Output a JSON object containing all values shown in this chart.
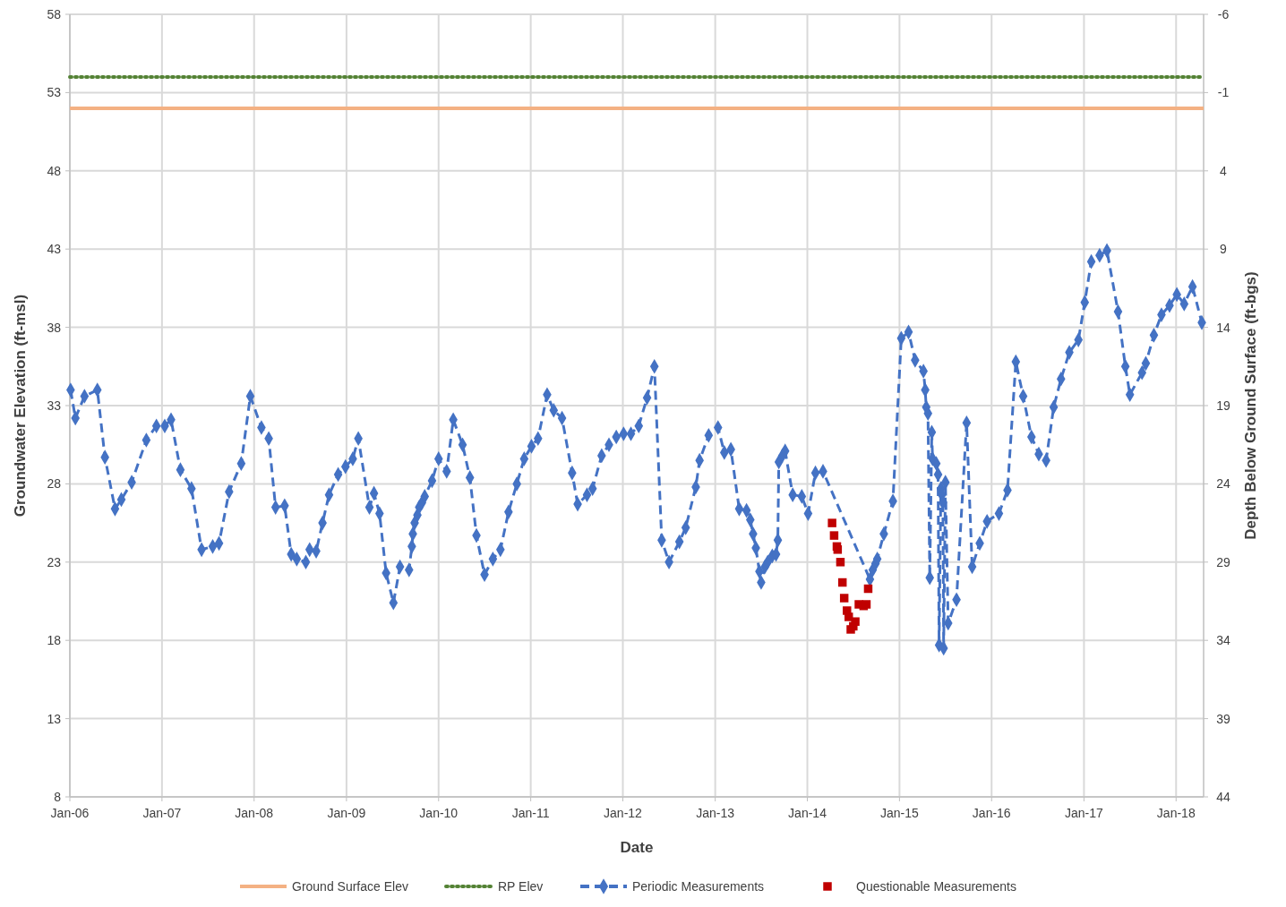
{
  "chart_data": {
    "type": "line",
    "xlabel": "Date",
    "ylabel": "Groundwater Elevation (ft-msl)",
    "y2label": "Depth Below Ground Surface (ft-bgs)",
    "xlim": [
      "2006-01-01",
      "2018-04-20"
    ],
    "xticks": [
      {
        "value": "2006-01-01",
        "label": "Jan-06"
      },
      {
        "value": "2007-01-01",
        "label": "Jan-07"
      },
      {
        "value": "2008-01-01",
        "label": "Jan-08"
      },
      {
        "value": "2009-01-01",
        "label": "Jan-09"
      },
      {
        "value": "2010-01-01",
        "label": "Jan-10"
      },
      {
        "value": "2011-01-01",
        "label": "Jan-11"
      },
      {
        "value": "2012-01-01",
        "label": "Jan-12"
      },
      {
        "value": "2013-01-01",
        "label": "Jan-13"
      },
      {
        "value": "2014-01-01",
        "label": "Jan-14"
      },
      {
        "value": "2015-01-01",
        "label": "Jan-15"
      },
      {
        "value": "2016-01-01",
        "label": "Jan-16"
      },
      {
        "value": "2017-01-01",
        "label": "Jan-17"
      },
      {
        "value": "2018-01-01",
        "label": "Jan-18"
      }
    ],
    "ylim": [
      8,
      58
    ],
    "yticks": [
      8,
      13,
      18,
      23,
      28,
      33,
      38,
      43,
      48,
      53,
      58
    ],
    "y2lim": [
      44,
      -6
    ],
    "y2ticks": [
      44,
      39,
      34,
      29,
      24,
      19,
      14,
      9,
      4,
      -1,
      -6
    ],
    "grid": true,
    "legend": "bottom",
    "series": [
      {
        "name": "Ground Surface Elev",
        "color": "#f4b183",
        "line_style": "solid",
        "marker": "none",
        "x": [
          "2006-01-01",
          "2018-04-20"
        ],
        "values": [
          52,
          52
        ]
      },
      {
        "name": "RP Elev",
        "color": "#548235",
        "line_style": "dotted",
        "marker": "none",
        "x": [
          "2006-01-01",
          "2018-04-20"
        ],
        "values": [
          54,
          54
        ]
      },
      {
        "name": "Periodic Measurements",
        "color": "#4472c4",
        "line_style": "dashed",
        "marker": "diamond",
        "x": [
          "2006-01-04",
          "2006-01-23",
          "2006-02-28",
          "2006-04-20",
          "2006-05-20",
          "2006-06-29",
          "2006-07-24",
          "2006-09-03",
          "2006-10-31",
          "2006-12-10",
          "2007-01-12",
          "2007-02-06",
          "2007-03-15",
          "2007-04-28",
          "2007-06-07",
          "2007-07-21",
          "2007-08-15",
          "2007-09-24",
          "2007-11-11",
          "2007-12-17",
          "2008-01-30",
          "2008-02-28",
          "2008-03-26",
          "2008-05-01",
          "2008-05-27",
          "2008-06-18",
          "2008-07-24",
          "2008-08-08",
          "2008-09-03",
          "2008-09-28",
          "2008-10-24",
          "2008-11-29",
          "2008-12-28",
          "2009-01-26",
          "2009-02-17",
          "2009-04-02",
          "2009-04-20",
          "2009-05-12",
          "2009-06-07",
          "2009-07-06",
          "2009-08-01",
          "2009-09-06",
          "2009-09-17",
          "2009-09-21",
          "2009-09-28",
          "2009-10-09",
          "2009-10-16",
          "2009-10-27",
          "2009-11-07",
          "2009-12-06",
          "2010-01-01",
          "2010-02-02",
          "2010-02-28",
          "2010-04-06",
          "2010-05-05",
          "2010-05-31",
          "2010-07-02",
          "2010-08-04",
          "2010-09-03",
          "2010-10-05",
          "2010-11-07",
          "2010-12-06",
          "2011-01-04",
          "2011-01-30",
          "2011-03-07",
          "2011-04-02",
          "2011-05-05",
          "2011-06-14",
          "2011-07-06",
          "2011-08-12",
          "2011-09-03",
          "2011-10-09",
          "2011-11-07",
          "2011-12-06",
          "2012-01-04",
          "2012-02-02",
          "2012-03-04",
          "2012-04-06",
          "2012-05-05",
          "2012-06-03",
          "2012-07-02",
          "2012-08-12",
          "2012-09-06",
          "2012-10-16",
          "2012-10-31",
          "2012-12-06",
          "2013-01-12",
          "2013-02-06",
          "2013-03-04",
          "2013-04-06",
          "2013-05-05",
          "2013-05-20",
          "2013-05-31",
          "2013-06-11",
          "2013-06-25",
          "2013-07-02",
          "2013-07-17",
          "2013-07-28",
          "2013-08-15",
          "2013-08-30",
          "2013-09-06",
          "2013-09-10",
          "2013-09-24",
          "2013-10-05",
          "2013-11-04",
          "2013-12-10",
          "2014-01-04",
          "2014-02-02",
          "2014-03-04",
          "2014-09-06",
          "2014-09-17",
          "2014-09-28",
          "2014-10-05",
          "2014-10-31",
          "2014-12-06",
          "2015-01-08",
          "2015-02-06",
          "2015-03-04",
          "2015-04-06",
          "2015-04-13",
          "2015-04-17",
          "2015-04-24",
          "2015-05-01",
          "2015-05-09",
          "2015-05-12",
          "2015-05-27",
          "2015-06-03",
          "2015-06-07",
          "2015-06-14",
          "2015-06-18",
          "2015-06-22",
          "2015-06-25",
          "2015-07-02",
          "2015-07-13",
          "2015-08-15",
          "2015-09-24",
          "2015-10-16",
          "2015-11-15",
          "2015-12-14",
          "2016-01-30",
          "2016-03-04",
          "2016-04-06",
          "2016-05-05",
          "2016-06-07",
          "2016-07-06",
          "2016-08-04",
          "2016-09-03",
          "2016-10-02",
          "2016-11-04",
          "2016-12-10",
          "2017-01-04",
          "2017-01-30",
          "2017-03-04",
          "2017-04-02",
          "2017-05-16",
          "2017-06-14",
          "2017-07-02",
          "2017-08-19",
          "2017-09-03",
          "2017-10-05",
          "2017-11-04",
          "2017-12-06",
          "2018-01-04",
          "2018-02-02",
          "2018-03-07",
          "2018-04-13"
        ],
        "values": [
          34.0,
          32.2,
          33.6,
          34.0,
          29.7,
          26.4,
          27.0,
          28.1,
          30.8,
          31.7,
          31.7,
          32.1,
          28.9,
          27.7,
          23.8,
          24.0,
          24.2,
          27.5,
          29.3,
          33.6,
          31.6,
          30.9,
          26.5,
          26.6,
          23.5,
          23.2,
          23.0,
          23.8,
          23.7,
          25.5,
          27.3,
          28.6,
          29.1,
          29.6,
          30.9,
          26.5,
          27.4,
          26.1,
          22.3,
          20.4,
          22.7,
          22.5,
          24.0,
          24.8,
          25.5,
          26.0,
          26.5,
          26.8,
          27.2,
          28.2,
          29.6,
          28.8,
          32.1,
          30.5,
          28.4,
          24.7,
          22.2,
          23.2,
          23.8,
          26.2,
          28.0,
          29.6,
          30.4,
          30.9,
          33.7,
          32.7,
          32.2,
          28.7,
          26.7,
          27.3,
          27.7,
          29.8,
          30.5,
          31.0,
          31.2,
          31.2,
          31.7,
          33.5,
          35.5,
          24.4,
          23.0,
          24.3,
          25.2,
          27.8,
          29.5,
          31.1,
          31.6,
          30.0,
          30.2,
          26.4,
          26.3,
          25.7,
          24.8,
          23.9,
          22.4,
          21.7,
          22.7,
          23.0,
          23.4,
          23.5,
          24.4,
          29.4,
          29.8,
          30.1,
          27.3,
          27.2,
          26.1,
          28.7,
          28.8,
          21.9,
          22.5,
          22.9,
          23.2,
          24.8,
          26.9,
          37.3,
          37.7,
          35.9,
          35.2,
          34.0,
          32.9,
          32.5,
          22.0,
          31.3,
          29.6,
          29.3,
          28.6,
          17.7,
          27.7,
          27.3,
          26.8,
          17.5,
          28.1,
          19.1,
          20.6,
          31.9,
          22.7,
          24.2,
          25.6,
          26.1,
          27.6,
          35.8,
          33.6,
          31.0,
          29.9,
          29.5,
          32.9,
          34.7,
          36.4,
          37.2,
          39.6,
          42.2,
          42.6,
          42.9,
          39.0,
          35.5,
          33.7,
          35.1,
          35.7,
          37.5,
          38.8,
          39.4,
          40.1,
          39.5,
          40.6,
          38.3
        ]
      },
      {
        "name": "Questionable Measurements",
        "type": "scatter",
        "color": "#c00000",
        "marker": "square",
        "x": [
          "2014-04-09",
          "2014-04-17",
          "2014-04-28",
          "2014-05-01",
          "2014-05-12",
          "2014-05-20",
          "2014-05-27",
          "2014-06-07",
          "2014-06-14",
          "2014-06-22",
          "2014-07-02",
          "2014-07-10",
          "2014-07-24",
          "2014-08-12",
          "2014-08-23",
          "2014-08-30"
        ],
        "values": [
          25.5,
          24.7,
          24.0,
          23.8,
          23.0,
          21.7,
          20.7,
          19.9,
          19.5,
          18.7,
          18.9,
          19.2,
          20.3,
          20.2,
          20.3,
          21.3
        ]
      }
    ]
  }
}
